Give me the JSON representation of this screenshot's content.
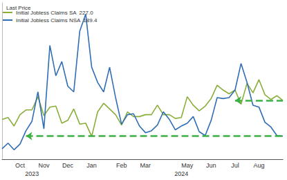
{
  "chart_data": {
    "type": "line",
    "legend_title": "Last Price",
    "legend": "top-left",
    "grid": false,
    "tick_labels": "x",
    "categories": [
      null,
      null,
      null,
      "Oct",
      null,
      null,
      null,
      "Nov",
      null,
      null,
      null,
      "Dec",
      null,
      null,
      null,
      "Jan",
      null,
      null,
      null,
      null,
      "Feb",
      null,
      null,
      null,
      "Mar",
      null,
      null,
      null,
      null,
      null,
      null,
      "May",
      null,
      null,
      null,
      "Jun",
      null,
      null,
      null,
      "Jul",
      null,
      null,
      null,
      "Aug",
      null,
      null,
      null,
      null
    ],
    "x_groups": [
      null,
      null,
      null,
      null,
      null,
      "2023",
      null,
      null,
      null,
      null,
      null,
      null,
      null,
      null,
      null,
      null,
      null,
      null,
      null,
      null,
      null,
      null,
      null,
      null,
      null,
      null,
      null,
      null,
      null,
      null,
      "2024",
      null,
      null,
      null,
      null,
      null,
      null,
      null,
      null,
      null,
      null,
      null,
      null,
      null,
      null,
      null,
      null,
      null
    ],
    "ylim": [
      165,
      330
    ],
    "series": [
      {
        "name": "Initial Jobless Claims SA",
        "color": "#8aae3a",
        "last_price": {
          "value": 227,
          "label": "227.0"
        },
        "values": [
          207,
          209,
          200,
          212,
          217,
          217,
          231,
          211,
          220,
          221,
          203,
          206,
          218,
          202,
          203,
          189,
          215,
          224,
          218,
          212,
          201,
          215,
          210,
          210,
          212,
          212,
          222,
          212,
          212,
          208,
          209,
          231,
          222,
          216,
          221,
          229,
          243,
          238,
          234,
          238,
          223,
          245,
          235,
          249,
          233,
          228,
          232,
          227
        ]
      },
      {
        "name": "Initial Jobless Claims NSA",
        "color": "#2f6db5",
        "last_price": {
          "value": 189.4,
          "label": "189.4"
        },
        "values": [
          176,
          182,
          175,
          181,
          195,
          205,
          236,
          197,
          285,
          253,
          268,
          242,
          236,
          300,
          318,
          262,
          246,
          236,
          262,
          230,
          202,
          212,
          213,
          200,
          193,
          195,
          201,
          215,
          207,
          196,
          200,
          203,
          210,
          194,
          190,
          206,
          230,
          229,
          230,
          238,
          266,
          246,
          222,
          220,
          204,
          199,
          190,
          189.4
        ]
      }
    ],
    "reference_arrows": [
      {
        "value": 227,
        "start": 39,
        "color": "#3cb043",
        "line_style": "dashed"
      },
      {
        "value": 189.4,
        "start": 4,
        "color": "#3cb043",
        "line_style": "dashed"
      }
    ]
  }
}
